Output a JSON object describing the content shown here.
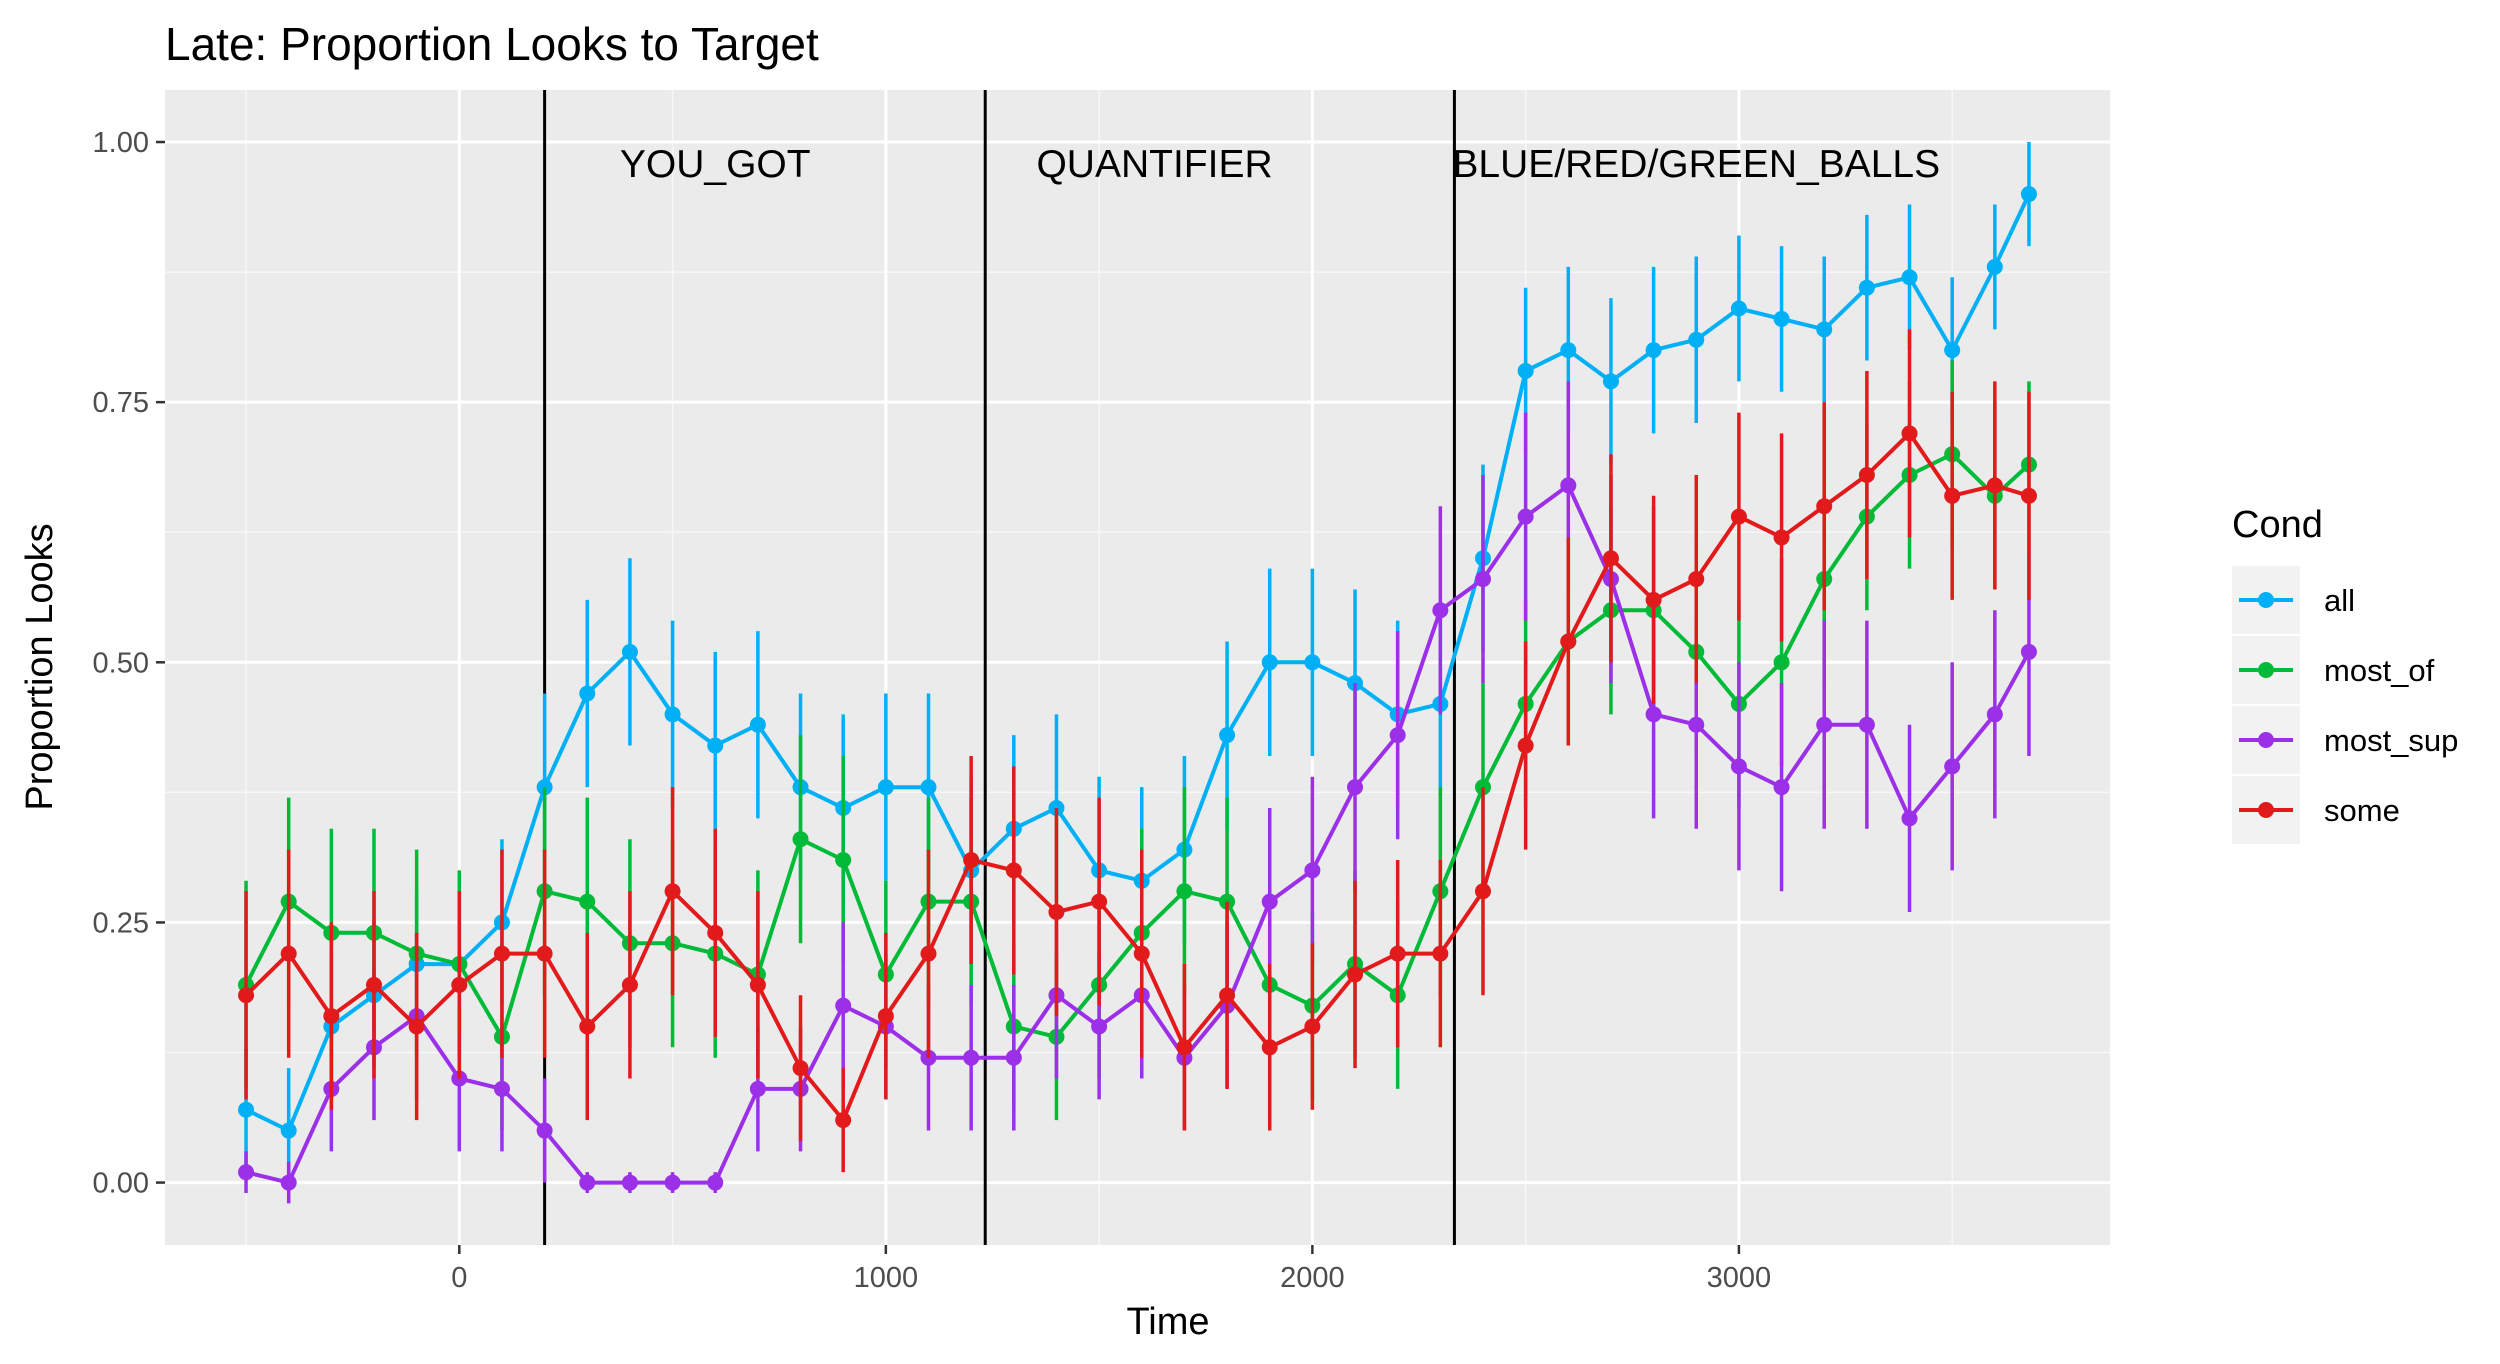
{
  "chart_data": {
    "type": "line",
    "title": "Late: Proportion Looks to Target",
    "xlabel": "Time",
    "ylabel": "Proportion Looks",
    "xlim": [
      -690,
      3870
    ],
    "ylim": [
      -0.06,
      1.05
    ],
    "x_ticks": [
      0,
      1000,
      2000,
      3000
    ],
    "x_tick_labels": [
      "0",
      "1000",
      "2000",
      "3000"
    ],
    "y_ticks": [
      0,
      0.25,
      0.5,
      0.75,
      1.0
    ],
    "y_tick_labels": [
      "0.00",
      "0.25",
      "0.50",
      "0.75",
      "1.00"
    ],
    "grid": true,
    "vlines": [
      200,
      1233,
      2333
    ],
    "annotations": [
      {
        "text": "YOU_GOT",
        "x": 600,
        "y": 0.98
      },
      {
        "text": "QUANTIFIER",
        "x": 1630,
        "y": 0.98
      },
      {
        "text": "BLUE/RED/GREEN_BALLS",
        "x": 2900,
        "y": 0.98
      }
    ],
    "legend": {
      "title": "Cond",
      "position": "right"
    },
    "series": [
      {
        "name": "all",
        "color": "#00b0f6",
        "x": [
          -500,
          -400,
          -300,
          -200,
          -100,
          0,
          100,
          200,
          300,
          400,
          500,
          600,
          700,
          800,
          900,
          1000,
          1100,
          1200,
          1300,
          1400,
          1500,
          1600,
          1700,
          1800,
          1900,
          2000,
          2100,
          2200,
          2300,
          2400,
          2500,
          2600,
          2700,
          2800,
          2900,
          3000,
          3100,
          3200,
          3300,
          3400,
          3500,
          3600,
          3680
        ],
        "y": [
          0.07,
          0.05,
          0.15,
          0.18,
          0.21,
          0.21,
          0.25,
          0.38,
          0.47,
          0.51,
          0.45,
          0.42,
          0.44,
          0.38,
          0.36,
          0.38,
          0.38,
          0.3,
          0.34,
          0.36,
          0.3,
          0.29,
          0.32,
          0.43,
          0.5,
          0.5,
          0.48,
          0.45,
          0.46,
          0.6,
          0.78,
          0.8,
          0.77,
          0.8,
          0.81,
          0.84,
          0.83,
          0.82,
          0.86,
          0.87,
          0.8,
          0.88,
          0.95
        ],
        "err": [
          0.06,
          0.06,
          0.07,
          0.07,
          0.07,
          0.07,
          0.08,
          0.09,
          0.09,
          0.09,
          0.09,
          0.09,
          0.09,
          0.09,
          0.09,
          0.09,
          0.09,
          0.09,
          0.09,
          0.09,
          0.09,
          0.09,
          0.09,
          0.09,
          0.09,
          0.09,
          0.09,
          0.09,
          0.09,
          0.09,
          0.08,
          0.08,
          0.08,
          0.08,
          0.08,
          0.07,
          0.07,
          0.07,
          0.07,
          0.07,
          0.07,
          0.06,
          0.05
        ]
      },
      {
        "name": "most_of",
        "color": "#00ba38",
        "x": [
          -500,
          -400,
          -300,
          -200,
          -100,
          0,
          100,
          200,
          300,
          400,
          500,
          600,
          700,
          800,
          900,
          1000,
          1100,
          1200,
          1300,
          1400,
          1500,
          1600,
          1700,
          1800,
          1900,
          2000,
          2100,
          2200,
          2300,
          2400,
          2500,
          2600,
          2700,
          2800,
          2900,
          3000,
          3100,
          3200,
          3300,
          3400,
          3500,
          3600,
          3680
        ],
        "y": [
          0.19,
          0.27,
          0.24,
          0.24,
          0.22,
          0.21,
          0.14,
          0.28,
          0.27,
          0.23,
          0.23,
          0.22,
          0.2,
          0.33,
          0.31,
          0.2,
          0.27,
          0.27,
          0.15,
          0.14,
          0.19,
          0.24,
          0.28,
          0.27,
          0.19,
          0.17,
          0.21,
          0.18,
          0.28,
          0.38,
          0.46,
          0.52,
          0.55,
          0.55,
          0.51,
          0.46,
          0.5,
          0.58,
          0.64,
          0.68,
          0.7,
          0.66,
          0.69
        ],
        "err": [
          0.1,
          0.1,
          0.1,
          0.1,
          0.1,
          0.09,
          0.09,
          0.1,
          0.1,
          0.1,
          0.1,
          0.1,
          0.1,
          0.1,
          0.1,
          0.09,
          0.1,
          0.1,
          0.08,
          0.08,
          0.09,
          0.1,
          0.1,
          0.1,
          0.09,
          0.09,
          0.09,
          0.09,
          0.1,
          0.1,
          0.1,
          0.1,
          0.1,
          0.1,
          0.1,
          0.1,
          0.1,
          0.1,
          0.09,
          0.09,
          0.09,
          0.09,
          0.08
        ]
      },
      {
        "name": "most_sup",
        "color": "#9b30e8",
        "x": [
          -500,
          -400,
          -300,
          -200,
          -100,
          0,
          100,
          200,
          300,
          400,
          500,
          600,
          700,
          800,
          900,
          1000,
          1100,
          1200,
          1300,
          1400,
          1500,
          1600,
          1700,
          1800,
          1900,
          2000,
          2100,
          2200,
          2300,
          2400,
          2500,
          2600,
          2700,
          2800,
          2900,
          3000,
          3100,
          3200,
          3300,
          3400,
          3500,
          3600,
          3680
        ],
        "y": [
          0.01,
          0.0,
          0.09,
          0.13,
          0.16,
          0.1,
          0.09,
          0.05,
          0.0,
          0.0,
          0.0,
          0.0,
          0.09,
          0.09,
          0.17,
          0.15,
          0.12,
          0.12,
          0.12,
          0.18,
          0.15,
          0.18,
          0.12,
          0.17,
          0.27,
          0.3,
          0.38,
          0.43,
          0.55,
          0.58,
          0.64,
          0.67,
          0.58,
          0.45,
          0.44,
          0.4,
          0.38,
          0.44,
          0.44,
          0.35,
          0.4,
          0.45,
          0.51
        ],
        "err": [
          0.02,
          0.02,
          0.06,
          0.07,
          0.08,
          0.07,
          0.06,
          0.05,
          0.01,
          0.01,
          0.01,
          0.01,
          0.06,
          0.06,
          0.08,
          0.07,
          0.07,
          0.07,
          0.07,
          0.08,
          0.07,
          0.08,
          0.07,
          0.08,
          0.09,
          0.09,
          0.1,
          0.1,
          0.1,
          0.1,
          0.1,
          0.1,
          0.1,
          0.1,
          0.1,
          0.1,
          0.1,
          0.1,
          0.1,
          0.09,
          0.1,
          0.1,
          0.1
        ]
      },
      {
        "name": "some",
        "color": "#e31a1c",
        "x": [
          -500,
          -400,
          -300,
          -200,
          -100,
          0,
          100,
          200,
          300,
          400,
          500,
          600,
          700,
          800,
          900,
          1000,
          1100,
          1200,
          1300,
          1400,
          1500,
          1600,
          1700,
          1800,
          1900,
          2000,
          2100,
          2200,
          2300,
          2400,
          2500,
          2600,
          2700,
          2800,
          2900,
          3000,
          3100,
          3200,
          3300,
          3400,
          3500,
          3600,
          3680
        ],
        "y": [
          0.18,
          0.22,
          0.16,
          0.19,
          0.15,
          0.19,
          0.22,
          0.22,
          0.15,
          0.19,
          0.28,
          0.24,
          0.19,
          0.11,
          0.06,
          0.16,
          0.22,
          0.31,
          0.3,
          0.26,
          0.27,
          0.22,
          0.13,
          0.18,
          0.13,
          0.15,
          0.2,
          0.22,
          0.22,
          0.28,
          0.42,
          0.52,
          0.6,
          0.56,
          0.58,
          0.64,
          0.62,
          0.65,
          0.68,
          0.72,
          0.66,
          0.67,
          0.66
        ],
        "err": [
          0.1,
          0.1,
          0.09,
          0.09,
          0.09,
          0.09,
          0.1,
          0.1,
          0.09,
          0.09,
          0.1,
          0.1,
          0.09,
          0.07,
          0.05,
          0.08,
          0.1,
          0.1,
          0.1,
          0.1,
          0.1,
          0.1,
          0.08,
          0.09,
          0.08,
          0.08,
          0.09,
          0.09,
          0.09,
          0.1,
          0.1,
          0.1,
          0.1,
          0.1,
          0.1,
          0.1,
          0.1,
          0.1,
          0.1,
          0.1,
          0.1,
          0.1,
          0.1
        ]
      }
    ]
  }
}
